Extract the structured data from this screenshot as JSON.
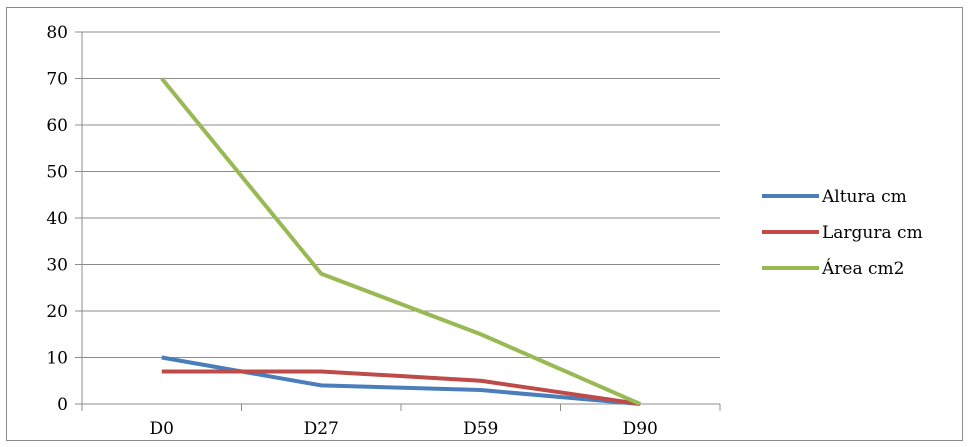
{
  "chart_data": {
    "type": "line",
    "categories": [
      "D0",
      "D27",
      "D59",
      "D90"
    ],
    "series": [
      {
        "name": "Altura cm",
        "values": [
          10,
          4,
          3,
          0
        ],
        "color": "#4a7ebb"
      },
      {
        "name": "Largura cm",
        "values": [
          7,
          7,
          5,
          0
        ],
        "color": "#be4b48"
      },
      {
        "name": "Área cm2",
        "values": [
          70,
          28,
          15,
          0
        ],
        "color": "#98b954"
      }
    ],
    "ylim": [
      0,
      80
    ],
    "yticks": [
      0,
      10,
      20,
      30,
      40,
      50,
      60,
      70,
      80
    ],
    "grid": true,
    "legend_position": "right"
  }
}
